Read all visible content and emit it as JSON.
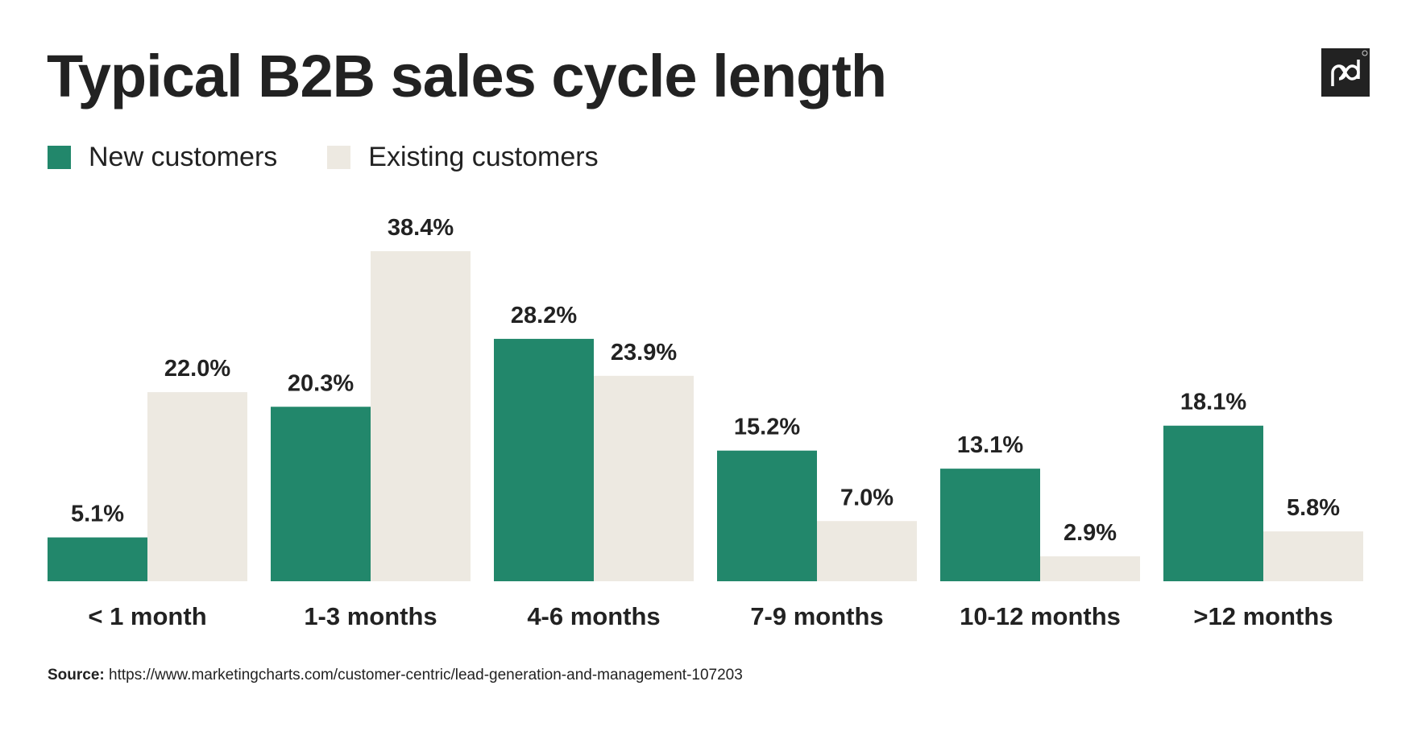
{
  "chart_data": {
    "type": "bar",
    "title": "Typical B2B sales cycle length",
    "categories": [
      "< 1 month",
      "1-3 months",
      "4-6 months",
      "7-9 months",
      "10-12 months",
      ">12 months"
    ],
    "series": [
      {
        "name": "New customers",
        "values": [
          5.1,
          20.3,
          28.2,
          15.2,
          13.1,
          18.1
        ],
        "color": "#22876B"
      },
      {
        "name": "Existing customers",
        "values": [
          22.0,
          38.4,
          23.9,
          7.0,
          2.9,
          5.8
        ],
        "color": "#EDE9E1"
      }
    ],
    "value_format": "percent, 1 decimal",
    "ylim": [
      0,
      38.4
    ],
    "grid": false,
    "legend": "top-left"
  },
  "source": {
    "label": "Source:",
    "url": "https://www.marketingcharts.com/customer-centric/lead-generation-and-management-107203"
  },
  "logo": {
    "text": "pd",
    "icon": "pandadoc-logo"
  }
}
